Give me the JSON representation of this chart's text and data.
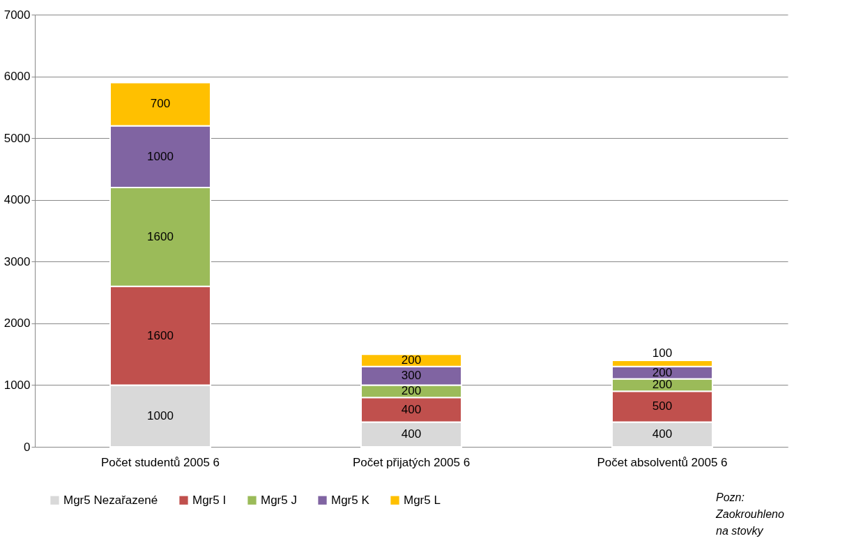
{
  "chart_data": {
    "type": "bar",
    "stacked": true,
    "categories": [
      "Počet studentů 2005 6",
      "Počet přijatých 2005 6",
      "Počet absolventů 2005 6"
    ],
    "series": [
      {
        "name": "Mgr5 Nezařazené",
        "color": "#d9d9d9",
        "values": [
          1000,
          400,
          400
        ]
      },
      {
        "name": "Mgr5 I",
        "color": "#c0504d",
        "values": [
          1600,
          400,
          500
        ]
      },
      {
        "name": "Mgr5 J",
        "color": "#9bbb59",
        "values": [
          1600,
          200,
          200
        ]
      },
      {
        "name": "Mgr5 K",
        "color": "#8064a2",
        "values": [
          1000,
          300,
          200
        ]
      },
      {
        "name": "Mgr5 L",
        "color": "#ffc000",
        "values": [
          700,
          200,
          100
        ]
      }
    ],
    "ylim": [
      0,
      7000
    ],
    "yticks": [
      0,
      1000,
      2000,
      3000,
      4000,
      5000,
      6000,
      7000
    ],
    "grid": "y",
    "legend": "bottom",
    "data_labels": true,
    "annotations": [
      "Pozn:\nZaokrouhleno\nna stovky"
    ]
  }
}
